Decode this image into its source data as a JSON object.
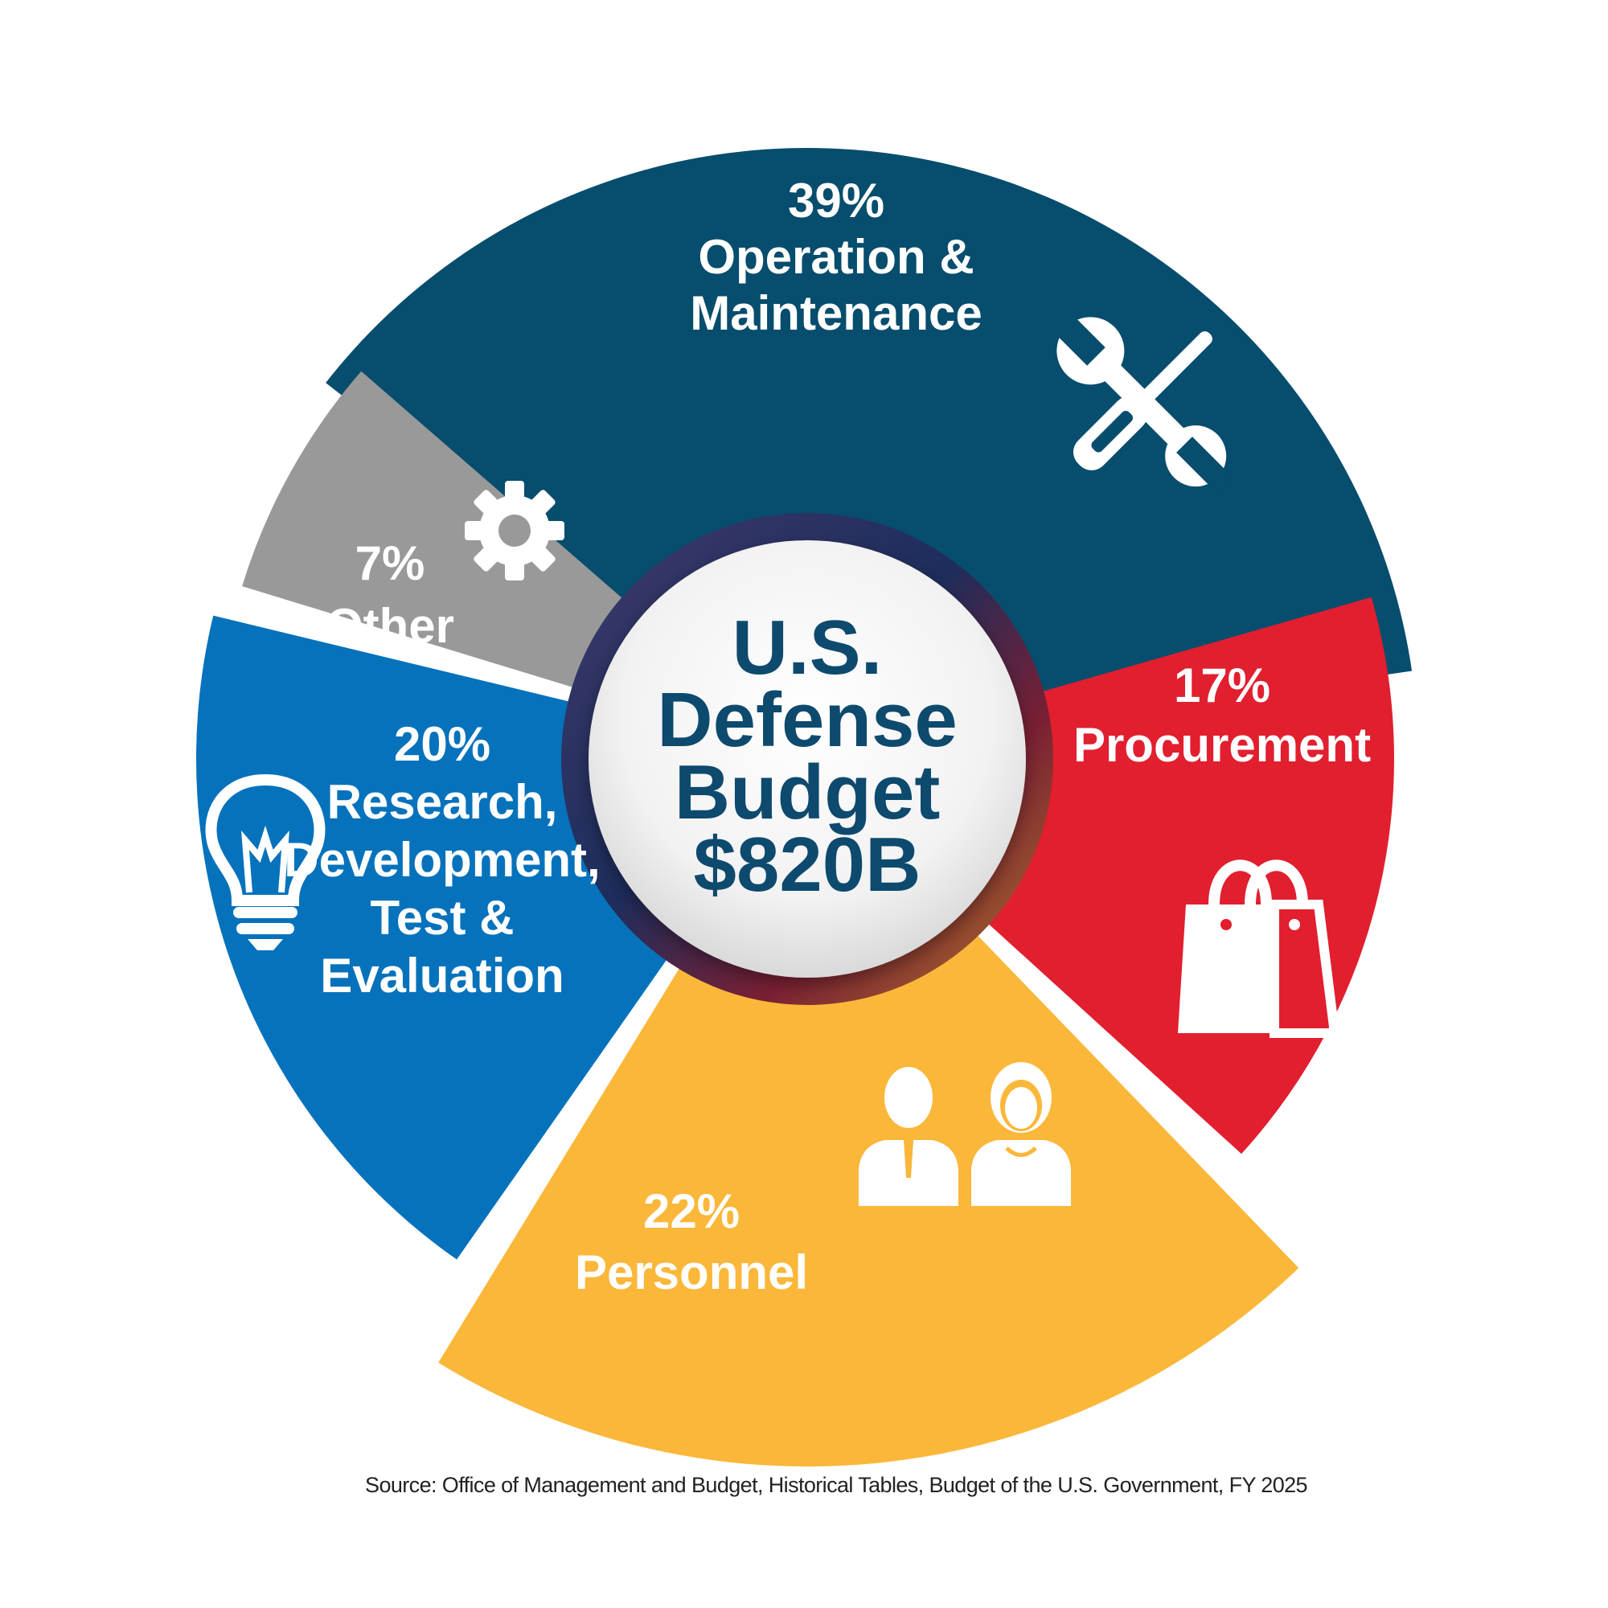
{
  "chart_data": {
    "type": "pie",
    "center_label": [
      "U.S.",
      "Defense",
      "Budget",
      "$820B"
    ],
    "slices": [
      {
        "label_lines": [
          "39%",
          "Operation &",
          "Maintenance"
        ],
        "value": 39,
        "color": "#074d6d",
        "icon": "wrench-screwdriver-icon"
      },
      {
        "label_lines": [
          "17%",
          "Procurement"
        ],
        "value": 17,
        "color": "#e11f2f",
        "icon": "shopping-bag-icon"
      },
      {
        "label_lines": [
          "22%",
          "Personnel"
        ],
        "value": 22,
        "color": "#fbb73a",
        "icon": "people-icon"
      },
      {
        "label_lines": [
          "20%",
          "Research,",
          "Development,",
          "Test &",
          "Evaluation"
        ],
        "value": 20,
        "color": "#0672bb",
        "icon": "lightbulb-icon"
      },
      {
        "label_lines": [
          "7%",
          "Other"
        ],
        "value": 7,
        "color": "#999999",
        "icon": "gear-icon"
      }
    ],
    "source": "Source: Office of Management and Budget, Historical Tables, Budget of the U.S. Government, FY 2025"
  }
}
